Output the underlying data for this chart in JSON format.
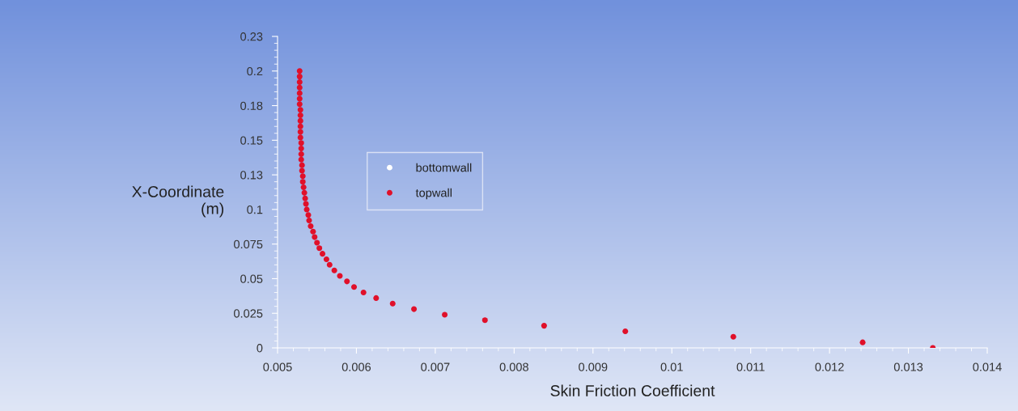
{
  "chart_data": {
    "type": "scatter",
    "xlabel": "Skin Friction Coefficient",
    "ylabel": "X-Coordinate\n(m)",
    "x": [
      0.01331,
      0.01242,
      0.01078,
      0.00941,
      0.00838,
      0.00763,
      0.00712,
      0.00673,
      0.00646,
      0.00625,
      0.00609,
      0.00597,
      0.00588,
      0.00579,
      0.00572,
      0.00566,
      0.00562,
      0.00557,
      0.00553,
      0.0055,
      0.00547,
      0.00545,
      0.00542,
      0.0054,
      0.00539,
      0.00537,
      0.00536,
      0.00535,
      0.00534,
      0.00533,
      0.00532,
      0.00532,
      0.00531,
      0.00531,
      0.0053,
      0.0053,
      0.0053,
      0.0053,
      0.00529,
      0.00529,
      0.00529,
      0.00529,
      0.00529,
      0.00529,
      0.00528,
      0.00528,
      0.00528,
      0.00528,
      0.00528,
      0.00528,
      0.00528
    ],
    "series": [
      {
        "name": "bottomwall",
        "color": "#ffffff",
        "values": [
          null,
          null,
          null,
          null,
          null,
          null,
          null,
          null,
          null,
          null,
          null,
          null,
          null,
          null,
          null,
          null,
          null,
          null,
          null,
          null,
          null,
          null,
          null,
          null,
          null,
          null,
          null,
          null,
          null,
          null,
          null,
          null,
          null,
          null,
          null,
          null,
          null,
          null,
          null,
          null,
          null,
          null,
          null,
          null,
          null,
          null,
          null,
          null,
          null,
          null,
          null
        ]
      },
      {
        "name": "topwall",
        "color": "#e0102a",
        "values": [
          0,
          0.004,
          0.008,
          0.012,
          0.016,
          0.02,
          0.024,
          0.028,
          0.032,
          0.036,
          0.04,
          0.044,
          0.048,
          0.052,
          0.056,
          0.06,
          0.064,
          0.068,
          0.072,
          0.076,
          0.08,
          0.084,
          0.088,
          0.092,
          0.096,
          0.1,
          0.104,
          0.108,
          0.112,
          0.116,
          0.12,
          0.124,
          0.128,
          0.132,
          0.136,
          0.14,
          0.144,
          0.148,
          0.152,
          0.156,
          0.16,
          0.164,
          0.168,
          0.172,
          0.176,
          0.18,
          0.184,
          0.188,
          0.192,
          0.196,
          0.2
        ]
      }
    ],
    "xlim": [
      0.005,
      0.014
    ],
    "xticks": [
      0.005,
      0.006,
      0.007,
      0.008,
      0.009,
      0.01,
      0.011,
      0.012,
      0.013,
      0.014
    ],
    "ylim": [
      0,
      0.225
    ],
    "yticks": [
      0,
      0.025,
      0.05,
      0.075,
      0.1,
      {
        "value": 0.125,
        "label": "0.13"
      },
      0.15,
      {
        "value": 0.175,
        "label": "0.18"
      },
      0.2,
      {
        "value": 0.225,
        "label": "0.23"
      }
    ],
    "marker": "circle",
    "grid": false,
    "legend": "center left"
  }
}
